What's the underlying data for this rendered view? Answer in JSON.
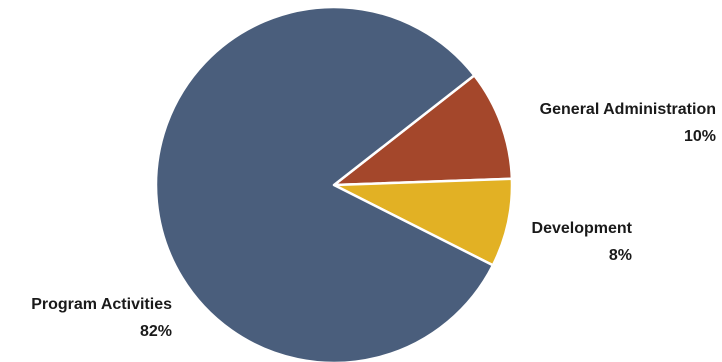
{
  "chart_data": {
    "type": "pie",
    "slices": [
      {
        "label": "General Administration",
        "value": 10,
        "display": "10%",
        "color": "#a4472b"
      },
      {
        "label": "Development",
        "value": 8,
        "display": "8%",
        "color": "#e2b124"
      },
      {
        "label": "Program Activities",
        "value": 82,
        "display": "82%",
        "color": "#4a5e7c"
      }
    ],
    "start_angle_deg": -38,
    "direction": "clockwise",
    "legend": "none",
    "slice_border_color": "#ffffff"
  }
}
